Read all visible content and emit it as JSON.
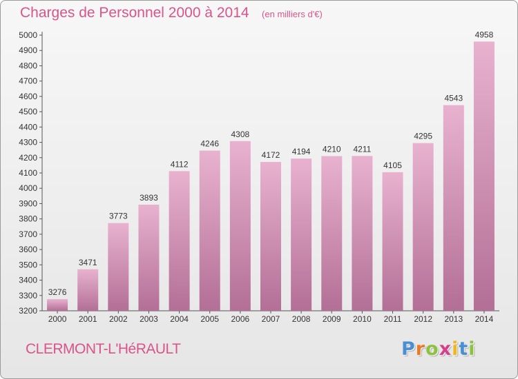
{
  "header": {
    "title": "Charges de Personnel 2000 à 2014",
    "unit": "(en milliers d'€)"
  },
  "footer": {
    "location": "CLERMONT-L'HéRAULT",
    "logo_letters": [
      "P",
      "r",
      "o",
      "x",
      "i",
      "t",
      "i"
    ],
    "logo_colors": [
      "#4a8fd4",
      "#e87a2a",
      "#8cc23f",
      "#d4408a",
      "#f2b51c",
      "#4a8fd4",
      "#8cc23f"
    ]
  },
  "colors": {
    "bar_top": "#e8b2cf",
    "bar_bottom": "#b36f96",
    "text": "#333333",
    "title": "#d9548a"
  },
  "chart_data": {
    "type": "bar",
    "title": "Charges de Personnel 2000 à 2014",
    "subtitle": "(en milliers d'€)",
    "xlabel": "",
    "ylabel": "",
    "categories": [
      "2000",
      "2001",
      "2002",
      "2003",
      "2004",
      "2005",
      "2006",
      "2007",
      "2008",
      "2009",
      "2010",
      "2011",
      "2012",
      "2013",
      "2014"
    ],
    "values": [
      3276,
      3471,
      3773,
      3893,
      4112,
      4246,
      4308,
      4172,
      4194,
      4210,
      4211,
      4105,
      4295,
      4543,
      4958
    ],
    "ylim": [
      3200,
      5000
    ],
    "ytick_step": 100,
    "grid": false,
    "data_labels": true
  }
}
